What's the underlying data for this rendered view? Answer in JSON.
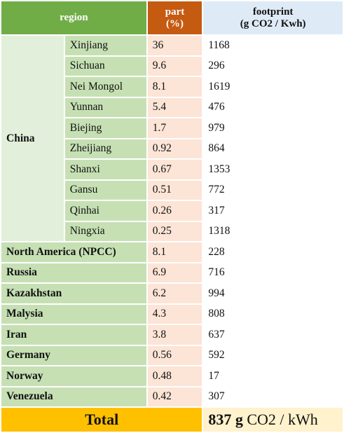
{
  "headers": {
    "region": "region",
    "part_line1": "part",
    "part_line2": "(%)",
    "footprint_line1": "footprint",
    "footprint_line2": "(g CO2 / Kwh)"
  },
  "china": {
    "label": "China",
    "provinces": [
      {
        "name": "Xinjiang",
        "part": "36",
        "footprint": "1168"
      },
      {
        "name": "Sichuan",
        "part": "9.6",
        "footprint": "296"
      },
      {
        "name": "Nei Mongol",
        "part": "8.1",
        "footprint": "1619"
      },
      {
        "name": "Yunnan",
        "part": "5.4",
        "footprint": "476"
      },
      {
        "name": "Biejing",
        "part": "1.7",
        "footprint": "979"
      },
      {
        "name": "Zheijiang",
        "part": "0.92",
        "footprint": "864"
      },
      {
        "name": "Shanxi",
        "part": "0.67",
        "footprint": "1353"
      },
      {
        "name": "Gansu",
        "part": "0.51",
        "footprint": "772"
      },
      {
        "name": "Qinhai",
        "part": "0.26",
        "footprint": "317"
      },
      {
        "name": "Ningxia",
        "part": "0.25",
        "footprint": "1318"
      }
    ]
  },
  "countries": [
    {
      "name": "North America (NPCC)",
      "part": "8.1",
      "footprint": "228"
    },
    {
      "name": "Russia",
      "part": "6.9",
      "footprint": "716"
    },
    {
      "name": "Kazakhstan",
      "part": "6.2",
      "footprint": "994"
    },
    {
      "name": "Malysia",
      "part": "4.3",
      "footprint": "808"
    },
    {
      "name": "Iran",
      "part": "3.8",
      "footprint": "637"
    },
    {
      "name": "Germany",
      "part": "0.56",
      "footprint": "592"
    },
    {
      "name": "Norway",
      "part": "0.48",
      "footprint": "17"
    },
    {
      "name": "Venezuela",
      "part": "0.42",
      "footprint": "307"
    }
  ],
  "total": {
    "label": "Total",
    "value_bold": "837 g",
    "value_unit": " CO2 / kWh"
  },
  "colors": {
    "region_header": "#70ad47",
    "part_header": "#c55a11",
    "footprint_header": "#deebf7",
    "row_label": "#c6e0b4",
    "part_cells": "#fce4d6",
    "total_label": "#ffc000",
    "total_value": "#fff2cc"
  }
}
